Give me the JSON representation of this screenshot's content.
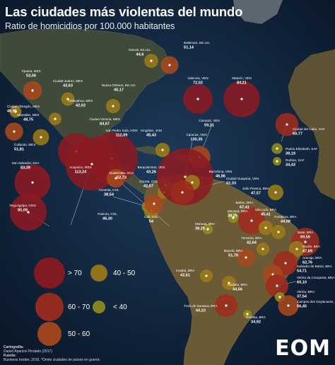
{
  "title": "Las ciudades más violentas del mundo",
  "subtitle": "Ratio de homicidios por 100.000 habitantes",
  "credits": {
    "cartografia_label": "Cartografía:",
    "cartografia": "Daniel Aparicio Pindado (2017)",
    "fuente_label": "Fuente:",
    "fuente": "Business Insider, 2016. *Omite ciudades de países en guerra"
  },
  "logo": "EOM",
  "legend": [
    {
      "label": "> 70",
      "color": "#8b1a22"
    },
    {
      "label": "60 - 70",
      "color": "#9e2b1e"
    },
    {
      "label": "50 - 60",
      "color": "#a8481c"
    },
    {
      "label": "40 - 50",
      "color": "#9c7a18"
    },
    {
      "label": "< 40",
      "color": "#8f8c1c"
    }
  ],
  "cities": [
    {
      "name": "Detroit, EE.UU.",
      "value": "44,6"
    },
    {
      "name": "Baltimore, EE.UU.",
      "value": "51,14"
    },
    {
      "name": "Tijuana, MEX",
      "value": "53,06"
    },
    {
      "name": "Ciudad Juárez, MEX",
      "value": "43,63"
    },
    {
      "name": "Nueva Orleans, EE.UU.",
      "value": "45,17"
    },
    {
      "name": "Ciudad Obregón, MEX",
      "value": "40,95"
    },
    {
      "name": "Chihuahua, MEX",
      "value": "42,02"
    },
    {
      "name": "Mazatlán, MEX",
      "value": "48,75"
    },
    {
      "name": "Ciudad Victoria, MEX",
      "value": "84,67"
    },
    {
      "name": "Culiacán, MEX",
      "value": "51,81"
    },
    {
      "name": "San Pedro Sula, HON",
      "value": "112,09"
    },
    {
      "name": "Kingston, JAM",
      "value": "45,43"
    },
    {
      "name": "San Salvador, ESA",
      "value": "83,39"
    },
    {
      "name": "Acapulco, MEX",
      "value": "113,24"
    },
    {
      "name": "Guatemala, GUA",
      "value": "52,73"
    },
    {
      "name": "Tegucigalpa, HON",
      "value": "85,09"
    },
    {
      "name": "Armenia, COL",
      "value": "38,54"
    },
    {
      "name": "Palmira, COL",
      "value": "46,30"
    },
    {
      "name": "Cali, COL",
      "value": "54"
    },
    {
      "name": "Barquisimeto, VEN",
      "value": "43,26"
    },
    {
      "name": "Cúcuta, COL",
      "value": "42,57"
    },
    {
      "name": "Valencia, VEN",
      "value": "72,02"
    },
    {
      "name": "Maturín, VEN",
      "value": "84,21"
    },
    {
      "name": "Cumaná, VEN",
      "value": "59,31"
    },
    {
      "name": "Caracas, VEN",
      "value": "130,35"
    },
    {
      "name": "Barcelona, VEN",
      "value": "46,86"
    },
    {
      "name": "Ciudad Guayana, VEN",
      "value": "62,33"
    },
    {
      "name": "Ciudad del Cabo, SAF",
      "value": "60,77"
    },
    {
      "name": "Puerto Elizabeth, SAF",
      "value": "39,19"
    },
    {
      "name": "Durban, SAF",
      "value": "34,43"
    },
    {
      "name": "João Pessoa, BRA",
      "value": "47,57"
    },
    {
      "name": "Belém, BRA",
      "value": "67,41"
    },
    {
      "name": "Macapá, BRA",
      "value": "38,25"
    },
    {
      "name": "Manaus, BRA",
      "value": "38,25"
    },
    {
      "name": "São Luís, BRA",
      "value": "45,41"
    },
    {
      "name": "Teresina, BRA",
      "value": "42,64"
    },
    {
      "name": "Fortaleza, BRA",
      "value": "44,98"
    },
    {
      "name": "Natal, BRA",
      "value": "69,56"
    },
    {
      "name": "Recife, BRA",
      "value": "47,89"
    },
    {
      "name": "Aracaju, BRA",
      "value": "62,76"
    },
    {
      "name": "Salvador de Bahía, BRA",
      "value": "54,71"
    },
    {
      "name": "Maceió, BRA",
      "value": "51,78"
    },
    {
      "name": "Vitória da Conquista, BRA",
      "value": "60,10"
    },
    {
      "name": "Cuiabá, BRA",
      "value": "42,61"
    },
    {
      "name": "Goiânia, BRA",
      "value": "44,56"
    },
    {
      "name": "Vitória, BRA",
      "value": "37,54"
    },
    {
      "name": "Campos dos Goytacazes, BRA",
      "value": "56,45"
    },
    {
      "name": "Feira de Santana, BRA",
      "value": "60,23"
    },
    {
      "name": "Curitiba, BRA",
      "value": "34,92"
    }
  ]
}
